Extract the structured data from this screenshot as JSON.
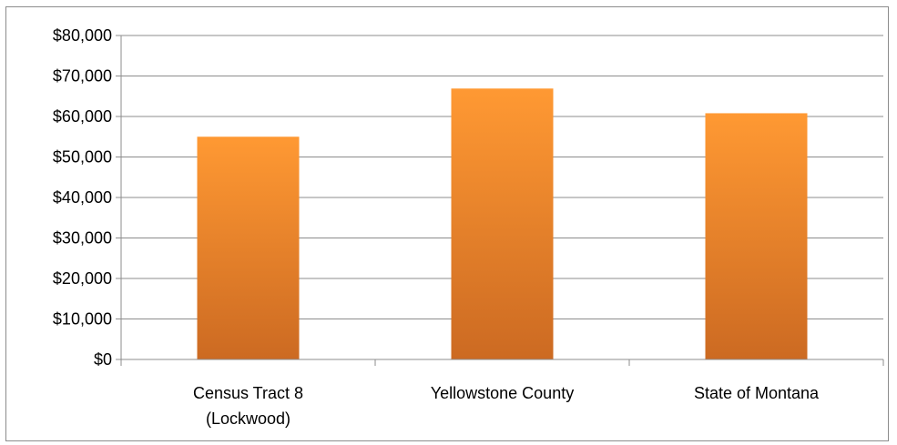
{
  "chart_data": {
    "type": "bar",
    "title": "",
    "xlabel": "",
    "ylabel": "",
    "categories": [
      [
        "Census Tract 8",
        "(Lockwood)"
      ],
      [
        "Yellowstone County"
      ],
      [
        "State of Montana"
      ]
    ],
    "values": [
      55000,
      66900,
      60800
    ],
    "ylim": [
      0,
      80000
    ],
    "yticks": [
      0,
      10000,
      20000,
      30000,
      40000,
      50000,
      60000,
      70000,
      80000
    ],
    "ytick_labels": [
      "$0",
      "$10,000",
      "$20,000",
      "$30,000",
      "$40,000",
      "$50,000",
      "$60,000",
      "$70,000",
      "$80,000"
    ],
    "grid": true,
    "legend": "none",
    "bar_color_top": "#FF9933",
    "bar_color_bottom": "#CC6A22",
    "gridline_color": "#8c8c8c"
  }
}
